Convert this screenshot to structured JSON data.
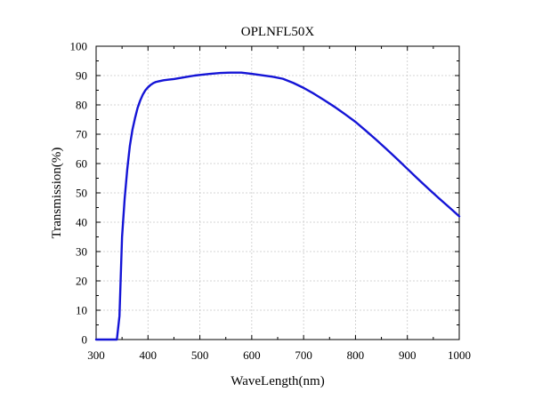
{
  "chart_data": {
    "type": "line",
    "title": "OPLNFL50X",
    "xlabel": "WaveLength(nm)",
    "ylabel": "Transmission(%)",
    "xlim": [
      300,
      1000
    ],
    "ylim": [
      0,
      100
    ],
    "x_ticks": [
      300,
      400,
      500,
      600,
      700,
      800,
      900,
      1000
    ],
    "y_ticks": [
      0,
      10,
      20,
      30,
      40,
      50,
      60,
      70,
      80,
      90,
      100
    ],
    "grid": true,
    "line_color": "#1414d6",
    "series": [
      {
        "x": [
          300,
          320,
          340,
          345,
          350,
          355,
          360,
          365,
          370,
          375,
          380,
          385,
          390,
          395,
          400,
          405,
          410,
          415,
          420,
          425,
          430,
          440,
          450,
          460,
          470,
          480,
          490,
          500,
          520,
          540,
          560,
          580,
          600,
          620,
          640,
          660,
          680,
          700,
          720,
          740,
          760,
          780,
          800,
          820,
          840,
          860,
          880,
          900,
          920,
          940,
          960,
          980,
          1000
        ],
        "y": [
          0,
          0,
          0,
          8,
          35,
          48,
          58,
          66,
          71.5,
          75.5,
          79,
          81.5,
          83.5,
          85,
          86,
          86.8,
          87.4,
          87.8,
          88.0,
          88.2,
          88.4,
          88.6,
          88.8,
          89.1,
          89.4,
          89.7,
          90.0,
          90.2,
          90.6,
          90.9,
          91.0,
          91.0,
          90.6,
          90.1,
          89.6,
          88.9,
          87.5,
          85.8,
          83.8,
          81.6,
          79.3,
          76.8,
          74.2,
          71.2,
          68.1,
          64.9,
          61.6,
          58.2,
          54.8,
          51.5,
          48.3,
          45.2,
          42.0
        ]
      }
    ]
  }
}
